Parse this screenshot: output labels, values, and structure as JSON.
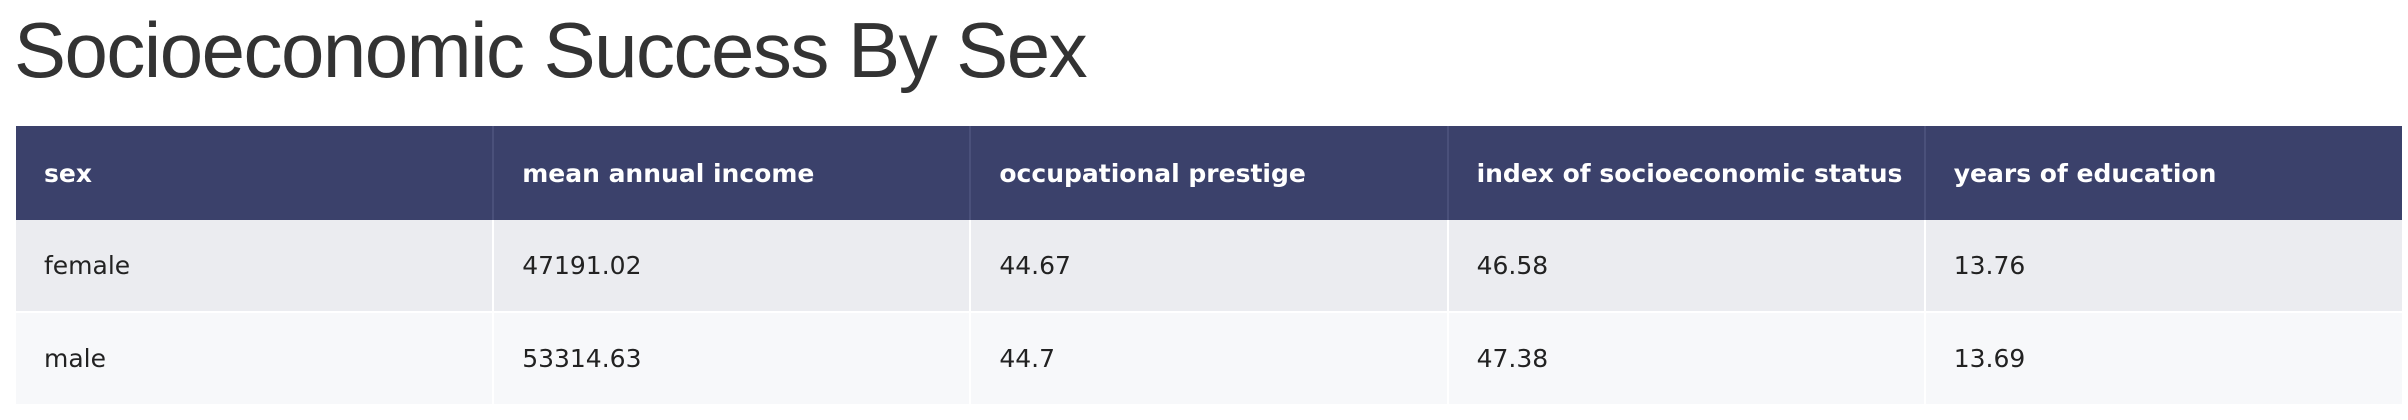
{
  "page": {
    "title": "Socioeconomic Success By Sex"
  },
  "table": {
    "headers": [
      "sex",
      "mean annual income",
      "occupational prestige",
      "index of socioeconomic status",
      "years of education"
    ],
    "rows": [
      [
        "female",
        "47191.02",
        "44.67",
        "46.58",
        "13.76"
      ],
      [
        "male",
        "53314.63",
        "44.7",
        "47.38",
        "13.69"
      ]
    ]
  },
  "colors": {
    "header_background": "#3b416b",
    "header_text": "#ffffff",
    "row_odd_background": "#ebecf0",
    "row_even_background": "#f7f8fa",
    "title_text": "#333333"
  }
}
